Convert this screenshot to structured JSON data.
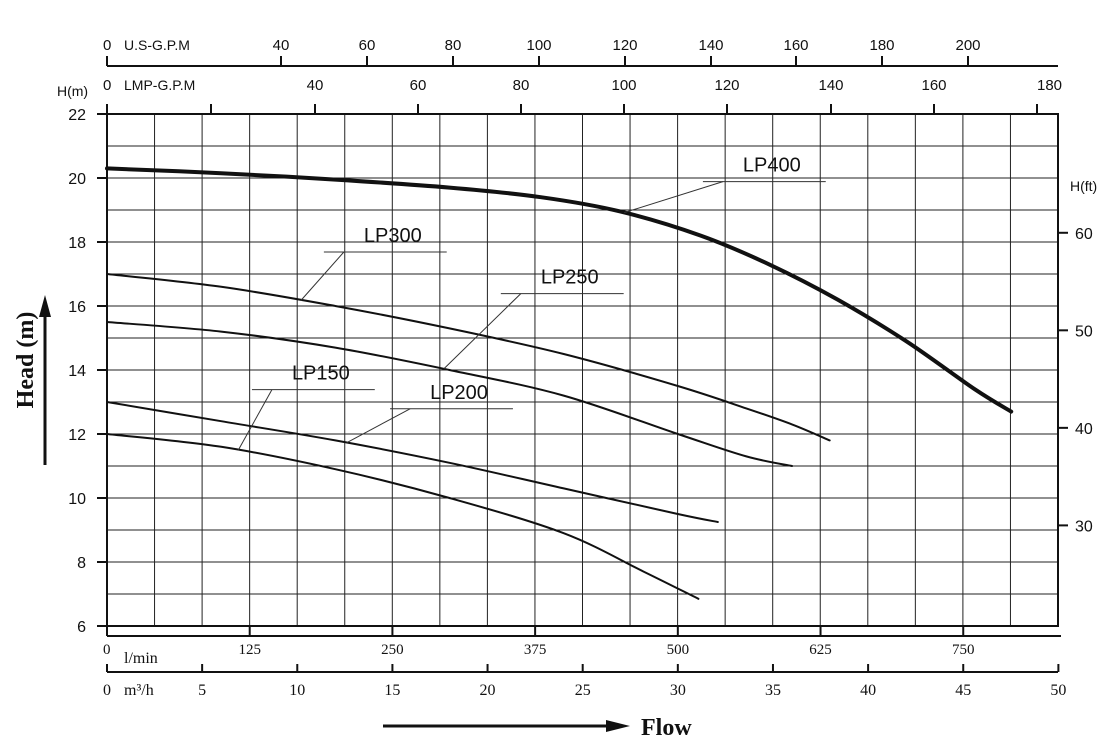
{
  "chart_data": {
    "type": "line",
    "ylabel": "Head (m)",
    "xlabel": "Flow",
    "y_left_unit": "H(m)",
    "y_right_unit": "H(ft)",
    "ylim": [
      6,
      22
    ],
    "y_ticks": [
      6,
      8,
      10,
      12,
      14,
      16,
      18,
      20,
      22
    ],
    "x_unit_lmin": "l/min",
    "xlim_lmin": [
      0,
      833
    ],
    "x_ticks_lmin": [
      0,
      125,
      250,
      375,
      500,
      625,
      750
    ],
    "x_unit_m3h": "m³/h",
    "x_ticks_m3h": [
      0,
      5,
      10,
      15,
      20,
      25,
      30,
      35,
      40,
      45,
      50
    ],
    "top_axis_usgpm": {
      "label": "U.S-G.P.M",
      "ticks": [
        "0",
        "40",
        "60",
        "80",
        "100",
        "120",
        "140",
        "160",
        "180",
        "200"
      ]
    },
    "top_axis_impgpm": {
      "label": "LMP-G.P.M",
      "ticks": [
        "0",
        "40",
        "60",
        "80",
        "100",
        "120",
        "140",
        "160",
        "180"
      ]
    },
    "right_axis_ft_ticks": [
      30,
      40,
      50,
      60
    ],
    "grid": true,
    "series": [
      {
        "name": "LP400",
        "x": [
          0,
          100,
          200,
          300,
          380,
          450,
          520,
          580,
          640,
          700,
          760,
          792
        ],
        "y": [
          20.3,
          20.15,
          19.95,
          19.7,
          19.4,
          18.95,
          18.2,
          17.3,
          16.2,
          14.9,
          13.4,
          12.7
        ]
      },
      {
        "name": "LP300",
        "x": [
          0,
          100,
          200,
          300,
          400,
          500,
          560,
          600,
          633
        ],
        "y": [
          17.0,
          16.6,
          16.0,
          15.3,
          14.5,
          13.5,
          12.8,
          12.3,
          11.8
        ]
      },
      {
        "name": "LP250",
        "x": [
          0,
          100,
          200,
          300,
          400,
          500,
          560,
          600
        ],
        "y": [
          15.5,
          15.2,
          14.7,
          14.0,
          13.2,
          12.0,
          11.3,
          11.0
        ]
      },
      {
        "name": "LP200",
        "x": [
          0,
          100,
          200,
          300,
          400,
          500,
          535
        ],
        "y": [
          13.0,
          12.4,
          11.8,
          11.1,
          10.3,
          9.5,
          9.25
        ]
      },
      {
        "name": "LP150",
        "x": [
          0,
          100,
          200,
          300,
          400,
          470,
          518
        ],
        "y": [
          12.0,
          11.6,
          10.9,
          10.0,
          8.9,
          7.7,
          6.85
        ]
      }
    ],
    "labels": [
      {
        "series": "LP400",
        "text": "LP400",
        "x": 557,
        "y": 20.2
      },
      {
        "series": "LP300",
        "text": "LP300",
        "x": 225,
        "y": 18.0
      },
      {
        "series": "LP250",
        "text": "LP250",
        "x": 380,
        "y": 16.7
      },
      {
        "series": "LP200",
        "text": "LP200",
        "x": 283,
        "y": 13.1
      },
      {
        "series": "LP150",
        "text": "LP150",
        "x": 162,
        "y": 13.7
      }
    ]
  }
}
